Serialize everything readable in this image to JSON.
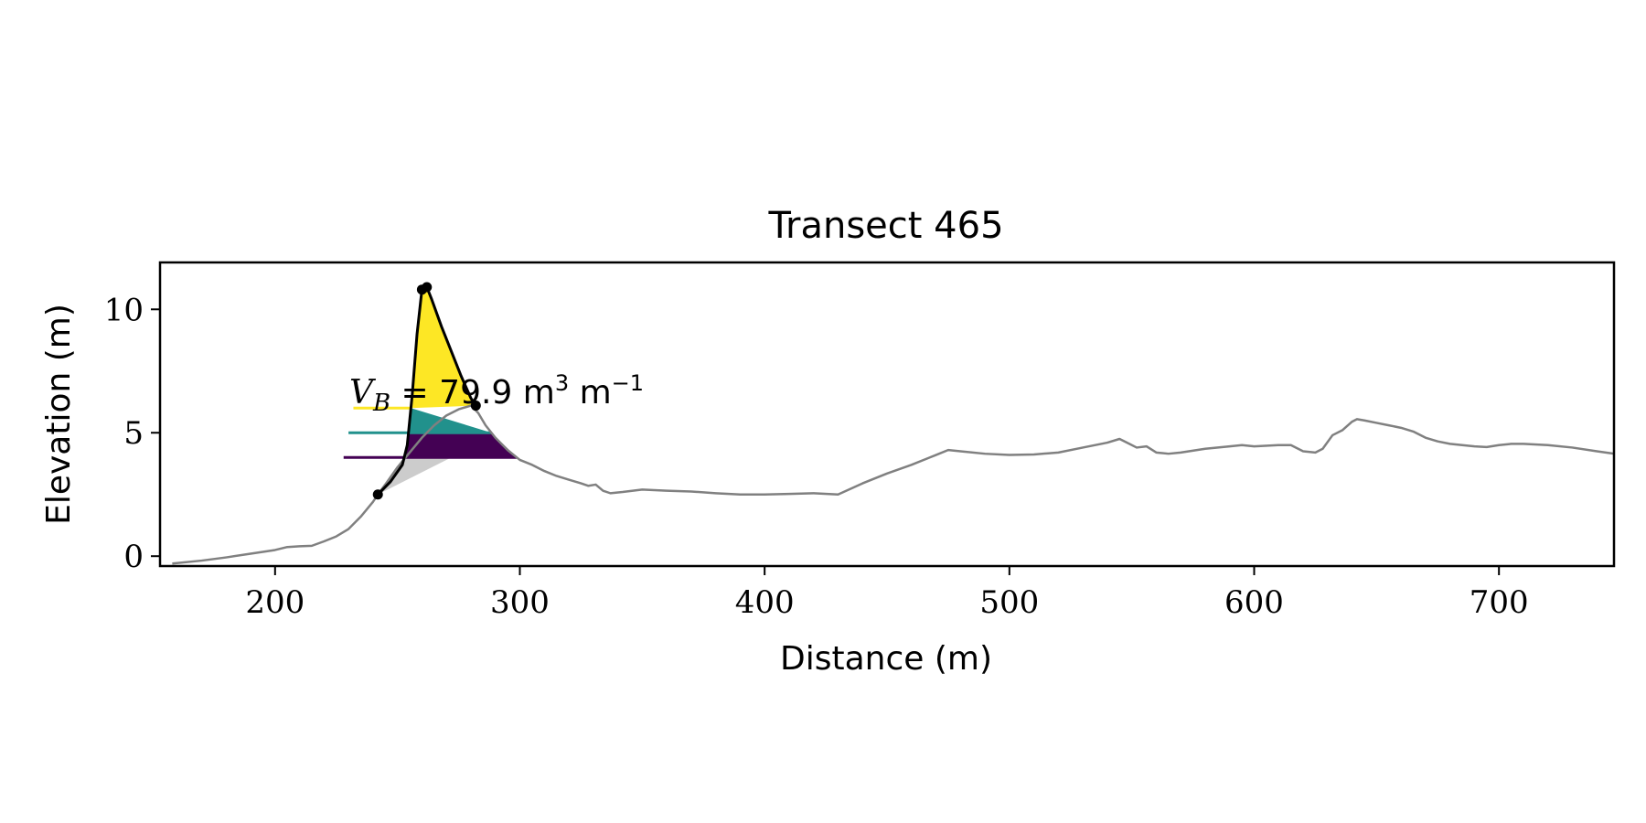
{
  "chart_data": {
    "type": "line",
    "title": "Transect 465",
    "xlabel": "Distance (m)",
    "ylabel": "Elevation (m)",
    "xlim": [
      153,
      747
    ],
    "ylim": [
      -0.4,
      11.9
    ],
    "xticks": [
      200,
      300,
      400,
      500,
      600,
      700
    ],
    "yticks": [
      0,
      5,
      10
    ],
    "grid": false,
    "annotation": {
      "prefix": "V",
      "subscript": "B",
      "equals": " = ",
      "value": "79.9",
      "unit_m": " m",
      "unit_m_exp": "3",
      "unit_per": " m",
      "unit_per_exp": "−1"
    },
    "profile": {
      "color": "#808080",
      "points": [
        [
          158,
          -0.3
        ],
        [
          170,
          -0.18
        ],
        [
          180,
          -0.05
        ],
        [
          190,
          0.1
        ],
        [
          200,
          0.25
        ],
        [
          205,
          0.37
        ],
        [
          210,
          0.4
        ],
        [
          215,
          0.42
        ],
        [
          220,
          0.6
        ],
        [
          225,
          0.8
        ],
        [
          230,
          1.1
        ],
        [
          235,
          1.6
        ],
        [
          240,
          2.2
        ],
        [
          242,
          2.5
        ],
        [
          245,
          2.9
        ],
        [
          250,
          3.6
        ],
        [
          255,
          4.2
        ],
        [
          260,
          4.8
        ],
        [
          265,
          5.3
        ],
        [
          270,
          5.7
        ],
        [
          275,
          5.95
        ],
        [
          280,
          6.1
        ],
        [
          283,
          5.8
        ],
        [
          286,
          5.3
        ],
        [
          290,
          4.8
        ],
        [
          295,
          4.3
        ],
        [
          300,
          3.9
        ],
        [
          305,
          3.7
        ],
        [
          310,
          3.45
        ],
        [
          315,
          3.25
        ],
        [
          320,
          3.1
        ],
        [
          325,
          2.95
        ],
        [
          328,
          2.85
        ],
        [
          331,
          2.9
        ],
        [
          334,
          2.65
        ],
        [
          337,
          2.55
        ],
        [
          342,
          2.6
        ],
        [
          350,
          2.7
        ],
        [
          360,
          2.65
        ],
        [
          370,
          2.62
        ],
        [
          380,
          2.55
        ],
        [
          390,
          2.5
        ],
        [
          400,
          2.5
        ],
        [
          410,
          2.52
        ],
        [
          420,
          2.55
        ],
        [
          430,
          2.5
        ],
        [
          440,
          2.95
        ],
        [
          450,
          3.35
        ],
        [
          460,
          3.7
        ],
        [
          470,
          4.1
        ],
        [
          475,
          4.3
        ],
        [
          480,
          4.25
        ],
        [
          490,
          4.15
        ],
        [
          500,
          4.1
        ],
        [
          510,
          4.12
        ],
        [
          520,
          4.2
        ],
        [
          530,
          4.4
        ],
        [
          540,
          4.6
        ],
        [
          545,
          4.75
        ],
        [
          548,
          4.6
        ],
        [
          552,
          4.4
        ],
        [
          556,
          4.45
        ],
        [
          560,
          4.2
        ],
        [
          565,
          4.15
        ],
        [
          570,
          4.2
        ],
        [
          580,
          4.35
        ],
        [
          590,
          4.45
        ],
        [
          595,
          4.5
        ],
        [
          600,
          4.45
        ],
        [
          610,
          4.5
        ],
        [
          615,
          4.5
        ],
        [
          620,
          4.25
        ],
        [
          625,
          4.2
        ],
        [
          628,
          4.35
        ],
        [
          632,
          4.9
        ],
        [
          636,
          5.1
        ],
        [
          640,
          5.45
        ],
        [
          642,
          5.55
        ],
        [
          645,
          5.5
        ],
        [
          650,
          5.4
        ],
        [
          655,
          5.3
        ],
        [
          660,
          5.2
        ],
        [
          665,
          5.05
        ],
        [
          670,
          4.8
        ],
        [
          675,
          4.65
        ],
        [
          680,
          4.55
        ],
        [
          685,
          4.5
        ],
        [
          690,
          4.45
        ],
        [
          695,
          4.42
        ],
        [
          700,
          4.5
        ],
        [
          705,
          4.55
        ],
        [
          710,
          4.55
        ],
        [
          720,
          4.5
        ],
        [
          730,
          4.4
        ],
        [
          740,
          4.25
        ],
        [
          747,
          4.15
        ]
      ]
    },
    "dune_outline": {
      "color": "#000000",
      "points": [
        [
          242,
          2.5
        ],
        [
          247,
          3.0
        ],
        [
          252,
          3.7
        ],
        [
          254,
          4.5
        ],
        [
          256,
          6.5
        ],
        [
          258,
          9.0
        ],
        [
          260,
          10.8
        ],
        [
          262,
          10.9
        ],
        [
          264,
          10.4
        ],
        [
          268,
          9.3
        ],
        [
          272,
          8.3
        ],
        [
          276,
          7.3
        ],
        [
          280,
          6.4
        ],
        [
          282,
          6.1
        ]
      ]
    },
    "key_points": [
      [
        242,
        2.5
      ],
      [
        260,
        10.8
      ],
      [
        262,
        10.9
      ],
      [
        282,
        6.1
      ]
    ],
    "water_levels": [
      {
        "z": 6.0,
        "color": "#fde725",
        "x_start": 232
      },
      {
        "z": 5.0,
        "color": "#21918c",
        "x_start": 230
      },
      {
        "z": 4.0,
        "color": "#440154",
        "x_start": 228
      }
    ],
    "shaded_base": {
      "z": 2.5,
      "color": "#cccccc"
    }
  }
}
